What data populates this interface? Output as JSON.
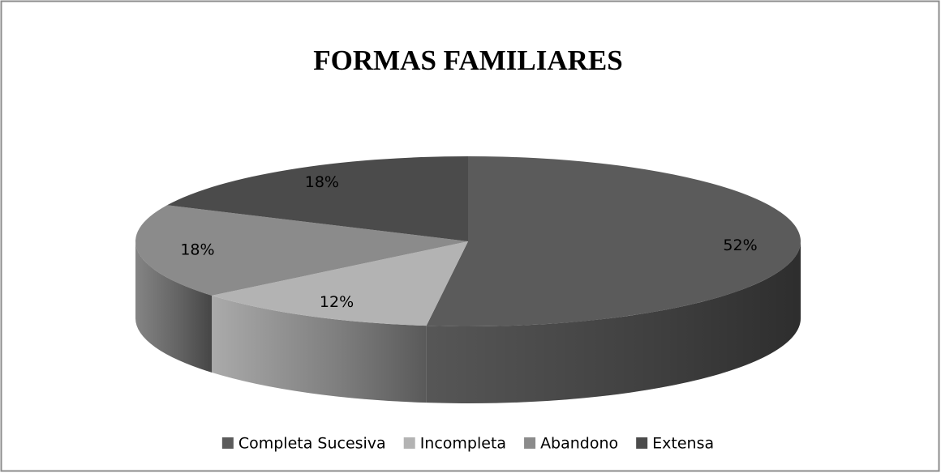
{
  "chart_data": {
    "type": "pie3d",
    "title": "FORMAS FAMILIARES",
    "categories": [
      "Completa Sucesiva",
      "Incompleta",
      "Abandono",
      "Extensa"
    ],
    "values": [
      52,
      12,
      18,
      18
    ],
    "value_labels": [
      "52%",
      "12%",
      "18%",
      "18%"
    ],
    "colors": [
      "#5b5b5b",
      "#b3b3b3",
      "#8b8b8b",
      "#4b4b4b"
    ],
    "legend": "bottom"
  }
}
